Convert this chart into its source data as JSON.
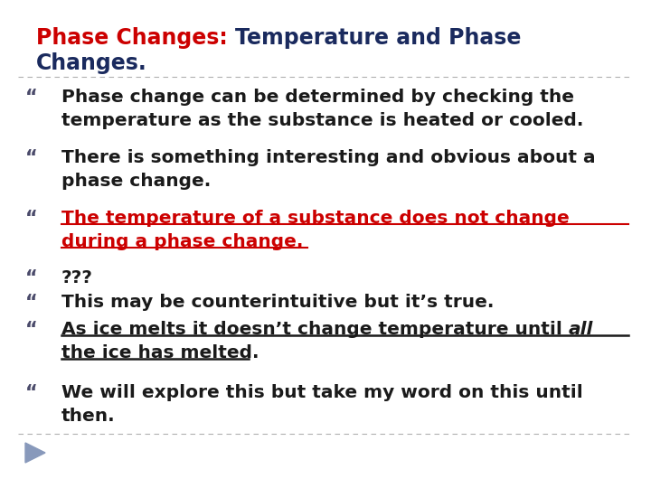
{
  "title_red": "Phase Changes: ",
  "title_blue": "Temperature and Phase\nChanges.",
  "title_red_color": "#cc0000",
  "title_blue_color": "#1a2a5e",
  "background_color": "#ffffff",
  "bullet_char": "“",
  "bullet_color": "#4a4a6a",
  "text_color": "#1a1a1a",
  "title_dark": "#1a2a5e",
  "bullets": [
    {
      "text_line1": "Phase change can be determined by checking the",
      "text_line2": "temperature as the substance is heated or cooled.",
      "color": "#1a1a1a",
      "underline": false,
      "italic_last": false
    },
    {
      "text_line1": "There is something interesting and obvious about a",
      "text_line2": "phase change.",
      "color": "#1a1a1a",
      "underline": false,
      "italic_last": false
    },
    {
      "text_line1": "The temperature of a substance does not change",
      "text_line2": "during a phase change.",
      "color": "#cc0000",
      "underline": true,
      "italic_last": false
    },
    {
      "text_line1": "???",
      "text_line2": null,
      "color": "#1a1a1a",
      "underline": false,
      "italic_last": false
    },
    {
      "text_line1": "This may be counterintuitive but it’s true.",
      "text_line2": null,
      "color": "#1a1a1a",
      "underline": false,
      "italic_last": false
    },
    {
      "text_line1": "As ice melts it doesn’t change temperature until ",
      "text_line1_italic": "all",
      "text_line2": "the ice has melted.",
      "color": "#1a1a1a",
      "underline": true,
      "italic_last": true
    },
    {
      "text_line1": "We will explore this but take my word on this until",
      "text_line2": "then.",
      "color": "#1a1a1a",
      "underline": false,
      "italic_last": false
    }
  ],
  "separator_color": "#b0b0b0",
  "arrow_color": "#8899bb",
  "figsize": [
    7.2,
    5.4
  ],
  "dpi": 100
}
